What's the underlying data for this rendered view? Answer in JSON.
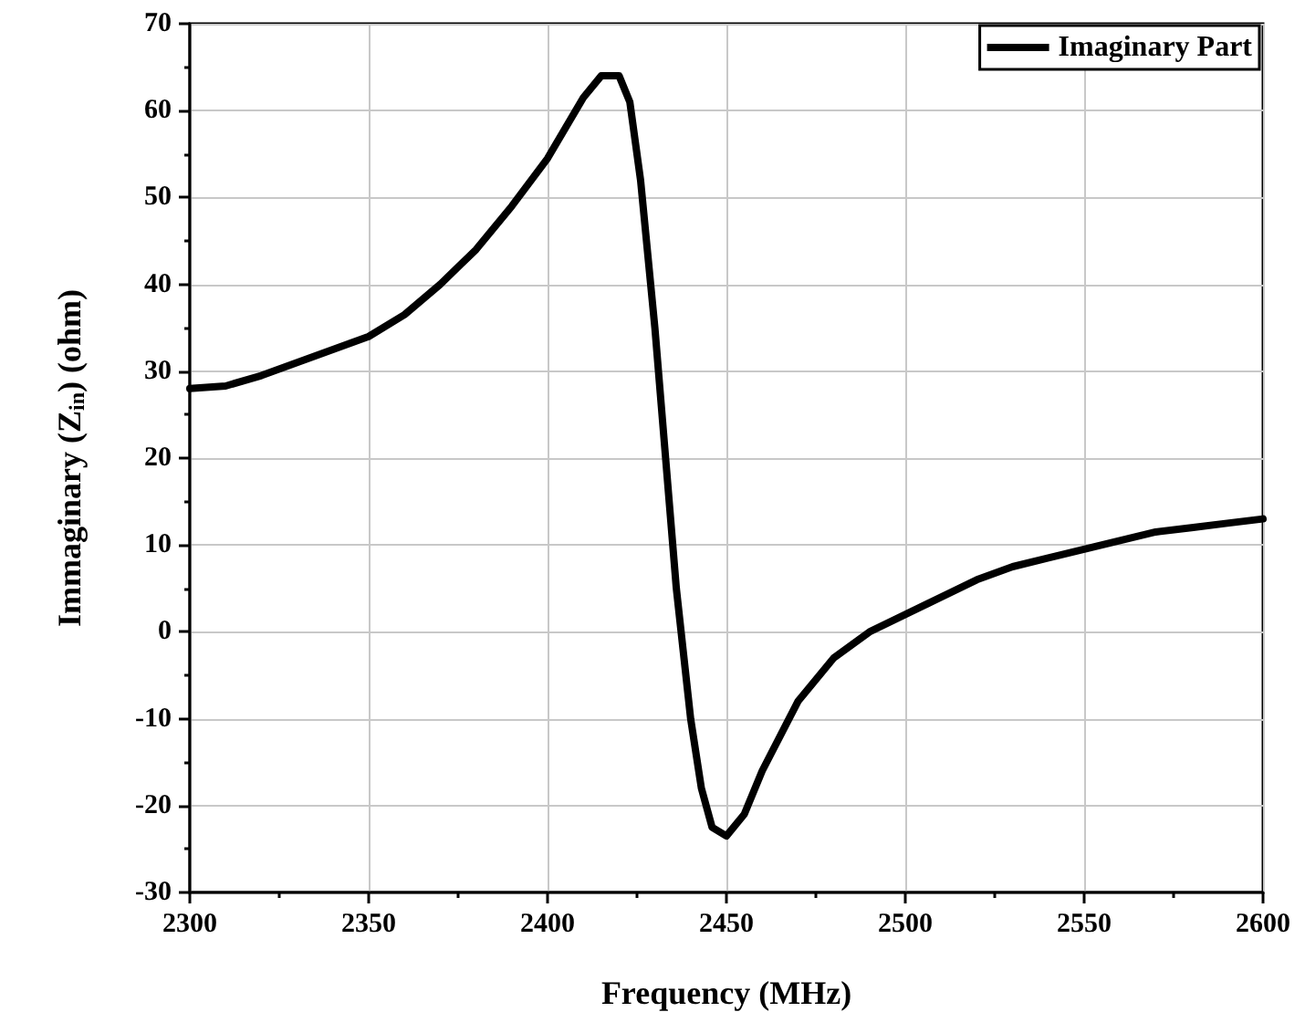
{
  "chart_data": {
    "type": "line",
    "xlabel": "Frequency (MHz)",
    "ylabel": "Immaginary (Z$_{in}$) (ohm)",
    "xlim": [
      2300,
      2600
    ],
    "xticks": [
      2300,
      2350,
      2400,
      2450,
      2500,
      2550,
      2600
    ],
    "ylim": [
      -30,
      70
    ],
    "yticks": [
      -30,
      -20,
      -10,
      0,
      10,
      20,
      30,
      40,
      50,
      60,
      70
    ],
    "grid": true,
    "legend": "top right",
    "marker": "none",
    "line_style": "solid",
    "series": [
      {
        "name": "Imaginary Part",
        "color": "#000000",
        "x": [
          2300,
          2310,
          2320,
          2330,
          2340,
          2350,
          2360,
          2370,
          2380,
          2390,
          2400,
          2405,
          2410,
          2415,
          2420,
          2423,
          2426,
          2430,
          2433,
          2436,
          2440,
          2443,
          2446,
          2450,
          2455,
          2460,
          2470,
          2480,
          2490,
          2500,
          2510,
          2520,
          2530,
          2540,
          2550,
          2560,
          2570,
          2580,
          2590,
          2600
        ],
        "values": [
          28,
          28.3,
          29.5,
          31,
          32.5,
          34,
          36.5,
          40,
          44,
          49,
          54.5,
          58,
          61.5,
          64,
          64,
          61,
          52,
          35,
          20,
          5,
          -10,
          -18,
          -22.5,
          -23.5,
          -21,
          -16,
          -8,
          -3,
          0,
          2,
          4,
          6,
          7.5,
          8.5,
          9.5,
          10.5,
          11.5,
          12,
          12.5,
          13
        ]
      }
    ]
  }
}
